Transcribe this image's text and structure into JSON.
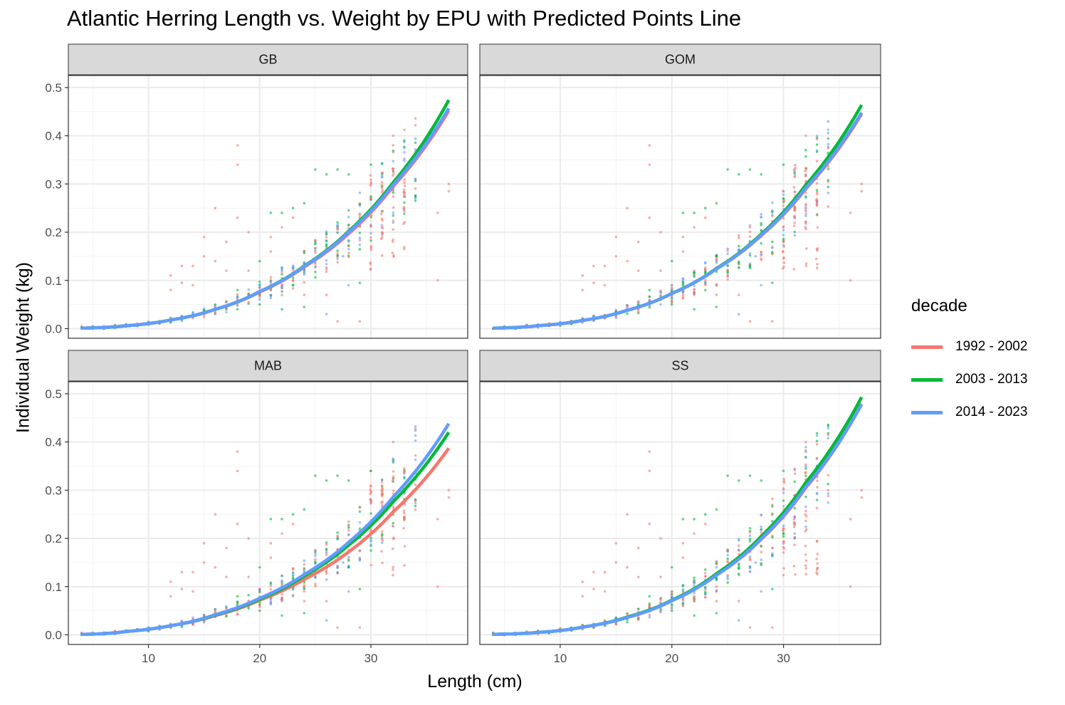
{
  "chart_data": {
    "type": "scatter",
    "title": "Atlantic Herring Length vs. Weight by EPU with Predicted Points Line",
    "xlabel": "Length (cm)",
    "ylabel": "Individual Weight (kg)",
    "xlim": [
      2.8,
      38.7
    ],
    "ylim": [
      -0.02,
      0.525
    ],
    "x_ticks": [
      10,
      20,
      30
    ],
    "y_ticks": [
      0.0,
      0.1,
      0.2,
      0.3,
      0.4,
      0.5
    ],
    "y_tick_labels": [
      "0.0",
      "0.1",
      "0.2",
      "0.3",
      "0.4",
      "0.5"
    ],
    "legend": {
      "title": "decade",
      "position": "right",
      "entries": [
        {
          "label": "1992 - 2002",
          "color": "#F8766D"
        },
        {
          "label": "2003 - 2013",
          "color": "#00BA38"
        },
        {
          "label": "2014 - 2023",
          "color": "#619CFF"
        }
      ]
    },
    "panels": [
      {
        "strip": "GB",
        "predicted_lines": [
          {
            "decade": "1992 - 2002",
            "x": [
              4,
              8,
              12,
              16,
              20,
              24,
              28,
              32,
              37
            ],
            "y": [
              0.001,
              0.006,
              0.018,
              0.04,
              0.076,
              0.128,
              0.197,
              0.295,
              0.452
            ]
          },
          {
            "decade": "2003 - 2013",
            "x": [
              4,
              8,
              12,
              16,
              20,
              24,
              28,
              32,
              37
            ],
            "y": [
              0.001,
              0.006,
              0.018,
              0.04,
              0.077,
              0.13,
              0.202,
              0.303,
              0.474
            ]
          },
          {
            "decade": "2014 - 2023",
            "x": [
              4,
              8,
              12,
              16,
              20,
              24,
              28,
              32,
              37
            ],
            "y": [
              0.001,
              0.006,
              0.018,
              0.04,
              0.077,
              0.129,
              0.2,
              0.298,
              0.457
            ]
          }
        ]
      },
      {
        "strip": "GOM",
        "predicted_lines": [
          {
            "decade": "1992 - 2002",
            "x": [
              4,
              8,
              12,
              16,
              20,
              24,
              28,
              32,
              37
            ],
            "y": [
              0.001,
              0.006,
              0.017,
              0.038,
              0.073,
              0.124,
              0.193,
              0.29,
              0.445
            ]
          },
          {
            "decade": "2003 - 2013",
            "x": [
              4,
              8,
              12,
              16,
              20,
              24,
              28,
              32,
              37
            ],
            "y": [
              0.001,
              0.006,
              0.017,
              0.038,
              0.073,
              0.125,
              0.196,
              0.298,
              0.464
            ]
          },
          {
            "decade": "2014 - 2023",
            "x": [
              4,
              8,
              12,
              16,
              20,
              24,
              28,
              32,
              37
            ],
            "y": [
              0.001,
              0.006,
              0.017,
              0.038,
              0.073,
              0.124,
              0.194,
              0.292,
              0.448
            ]
          }
        ]
      },
      {
        "strip": "MAB",
        "predicted_lines": [
          {
            "decade": "1992 - 2002",
            "x": [
              4,
              8,
              12,
              16,
              20,
              24,
              28,
              32,
              37
            ],
            "y": [
              0.001,
              0.007,
              0.019,
              0.04,
              0.072,
              0.115,
              0.172,
              0.255,
              0.387
            ]
          },
          {
            "decade": "2003 - 2013",
            "x": [
              4,
              8,
              12,
              16,
              20,
              24,
              28,
              32,
              37
            ],
            "y": [
              0.001,
              0.007,
              0.019,
              0.041,
              0.074,
              0.122,
              0.186,
              0.276,
              0.42
            ]
          },
          {
            "decade": "2014 - 2023",
            "x": [
              4,
              8,
              12,
              16,
              20,
              24,
              28,
              32,
              37
            ],
            "y": [
              0.001,
              0.007,
              0.019,
              0.042,
              0.076,
              0.125,
              0.192,
              0.286,
              0.438
            ]
          }
        ]
      },
      {
        "strip": "SS",
        "predicted_lines": [
          {
            "decade": "1992 - 2002",
            "x": [
              4,
              8,
              12,
              16,
              20,
              24,
              28,
              32,
              37
            ],
            "y": [
              0.001,
              0.005,
              0.016,
              0.036,
              0.071,
              0.124,
              0.198,
              0.305,
              0.479
            ]
          },
          {
            "decade": "2003 - 2013",
            "x": [
              4,
              8,
              12,
              16,
              20,
              24,
              28,
              32,
              37
            ],
            "y": [
              0.001,
              0.005,
              0.016,
              0.037,
              0.072,
              0.127,
              0.204,
              0.316,
              0.493
            ]
          },
          {
            "decade": "2014 - 2023",
            "x": [
              4,
              8,
              12,
              16,
              20,
              24,
              28,
              32,
              37
            ],
            "y": [
              0.001,
              0.005,
              0.016,
              0.036,
              0.071,
              0.124,
              0.199,
              0.307,
              0.478
            ]
          }
        ]
      }
    ],
    "observed_points_note_free": true,
    "observed_points": {
      "red_outliers": [
        [
          12,
          0.11
        ],
        [
          12,
          0.08
        ],
        [
          13,
          0.13
        ],
        [
          13,
          0.095
        ],
        [
          14,
          0.13
        ],
        [
          14,
          0.09
        ],
        [
          15,
          0.19
        ],
        [
          15,
          0.15
        ],
        [
          16,
          0.25
        ],
        [
          16,
          0.14
        ],
        [
          17,
          0.18
        ],
        [
          17,
          0.12
        ],
        [
          18,
          0.38
        ],
        [
          18,
          0.34
        ],
        [
          18,
          0.23
        ],
        [
          19,
          0.2
        ],
        [
          19,
          0.12
        ],
        [
          21,
          0.19
        ],
        [
          21,
          0.16
        ],
        [
          22,
          0.21
        ],
        [
          22,
          0.07
        ],
        [
          23,
          0.23
        ],
        [
          24,
          0.07
        ],
        [
          26,
          0.07
        ],
        [
          27,
          0.015
        ],
        [
          29,
          0.015
        ],
        [
          32,
          0.4
        ],
        [
          36,
          0.1
        ],
        [
          36,
          0.24
        ],
        [
          37,
          0.3
        ],
        [
          37,
          0.285
        ]
      ],
      "green_outliers": [
        [
          20,
          0.14
        ],
        [
          21,
          0.24
        ],
        [
          22,
          0.24
        ],
        [
          23,
          0.25
        ],
        [
          24,
          0.26
        ],
        [
          25,
          0.33
        ],
        [
          26,
          0.32
        ],
        [
          27,
          0.33
        ],
        [
          28,
          0.32
        ],
        [
          29,
          0.095
        ],
        [
          30,
          0.34
        ],
        [
          24,
          0.045
        ],
        [
          18,
          0.08
        ],
        [
          20,
          0.05
        ],
        [
          22,
          0.04
        ]
      ],
      "blue_outliers": [
        [
          26,
          0.03
        ],
        [
          28,
          0.09
        ],
        [
          27.5,
          0.15
        ]
      ]
    }
  }
}
